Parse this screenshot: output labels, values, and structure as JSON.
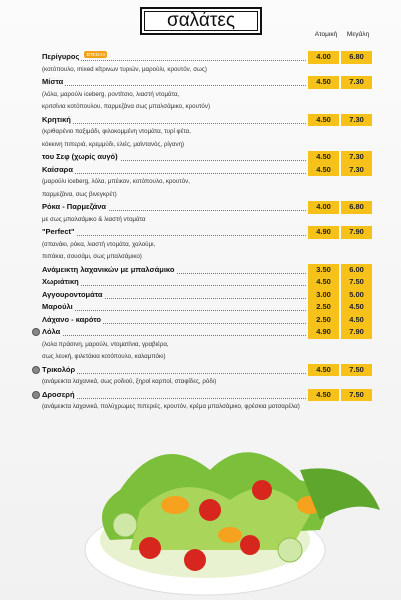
{
  "title": "σαλάτες",
  "columns": [
    "Ατομική",
    "Μεγάλη"
  ],
  "items": [
    {
      "name": "Περίγυρος",
      "badge": "ΣΠΕΣΙΑΛ",
      "description": [
        "(κοτόπουλο, mixed κίτρινων τυριών, μαρούλι, κρουτόν, σως)"
      ],
      "prices": [
        "4.00",
        "6.80"
      ]
    },
    {
      "name": "Μίστα",
      "description": [
        "(λόλα, μαρούλι iceberg, ροντίτσιο, λιαστή ντομάτα,",
        "κριτσίνια κοτόπουλου, παρμεζάνα σως μπαλσάμικο, κρουτόν)"
      ],
      "prices": [
        "4.50",
        "7.30"
      ]
    },
    {
      "name": "Κρητική",
      "description": [
        "(κριθαρένιο παξιμάδι, φιλοκομμένη ντομάτα, τυρί φέτα,",
        "κόκκινη πιπεριά, κρεμμύδι, ελιές, μαϊντανός, ρίγανη)"
      ],
      "prices": [
        "4.50",
        "7.30"
      ]
    },
    {
      "name": "του Σεφ (χωρίς αυγό)",
      "description": [],
      "prices": [
        "4.50",
        "7.30"
      ]
    },
    {
      "name": "Καίσαρα",
      "description": [
        "(μαρούλι iceberg, λόλα, μπέικον, κοτόπουλο, κρουτόν,",
        "παρμεζάνα, σως βινεγκρέτ)"
      ],
      "prices": [
        "4.50",
        "7.30"
      ]
    },
    {
      "name": "Ρόκα - Παρμεζάνα",
      "description": [
        "με σως μπαλσάμικο & λιαστή ντομάτα"
      ],
      "prices": [
        "4.00",
        "6.80"
      ]
    },
    {
      "name": "\"Perfect\"",
      "description": [
        "(σπανάκι, ρόκα, λιαστή ντομάτα, χαλούμι,",
        "πιπάκια, σουσάμι, σως μπαλσάμικο)"
      ],
      "prices": [
        "4.90",
        "7.90"
      ]
    },
    {
      "name": "Ανάμεικτη λαχανικών με μπαλσάμικο",
      "description": [],
      "prices": [
        "3.50",
        "6.00"
      ]
    },
    {
      "name": "Χωριάτικη",
      "description": [],
      "prices": [
        "4.50",
        "7.50"
      ]
    },
    {
      "name": "Αγγουροντομάτα",
      "description": [],
      "prices": [
        "3.00",
        "5.00"
      ]
    },
    {
      "name": "Μαρούλι",
      "description": [],
      "prices": [
        "2.50",
        "4.50"
      ]
    },
    {
      "name": "Λάχανο - καρότο",
      "description": [],
      "prices": [
        "2.50",
        "4.50"
      ]
    },
    {
      "name": "Λόλα",
      "icon": true,
      "description": [
        "(λολα πράσινη, μαρούλι, ντοματίνια, γραβιέρα,",
        "σως λευκή, φιλετάκια κοτόπουλο, καλαμπόκι)"
      ],
      "prices": [
        "4.90",
        "7.90"
      ]
    },
    {
      "name": "Τρικολόρ",
      "icon": true,
      "description": [
        "(ανάμεικτα λαχανικά, σως ροδιού, ξηροί καρποί, σταφίδες, ρόδι)"
      ],
      "prices": [
        "4.50",
        "7.50"
      ]
    },
    {
      "name": "Δροσερή",
      "icon": true,
      "description": [
        "(ανάμεικτα λαχανικά, πολύχρωμες πιπεριές, κρουτόν, κρέμα μπαλσάμικο, φρέσκια μοτσαρέλα)"
      ],
      "prices": [
        "4.50",
        "7.50"
      ]
    }
  ]
}
